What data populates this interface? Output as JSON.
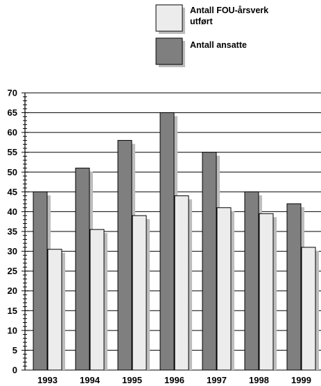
{
  "chart_data": {
    "type": "bar",
    "categories": [
      "1993",
      "1994",
      "1995",
      "1996",
      "1997",
      "1998",
      "1999"
    ],
    "series": [
      {
        "name": "Antall ansatte",
        "color": "#7f7f7f",
        "values": [
          45,
          51,
          58,
          65,
          55,
          45,
          42
        ]
      },
      {
        "name": "Antall FOU-årsverk utført",
        "color": "#ececec",
        "values": [
          30.5,
          35.5,
          39,
          44,
          41,
          39.5,
          31
        ]
      }
    ],
    "legend_labels": [
      [
        "Antall FOU-årsverk",
        "utført"
      ],
      [
        "Antall ansatte"
      ]
    ],
    "yticks": [
      "0",
      "5",
      "10",
      "15",
      "20",
      "25",
      "30",
      "35",
      "40",
      "45",
      "50",
      "55",
      "60",
      "65",
      "70"
    ],
    "ylim": [
      0,
      70
    ],
    "grid": true,
    "legend_position": "top-right",
    "shadow_color": "#bdbdbd"
  }
}
